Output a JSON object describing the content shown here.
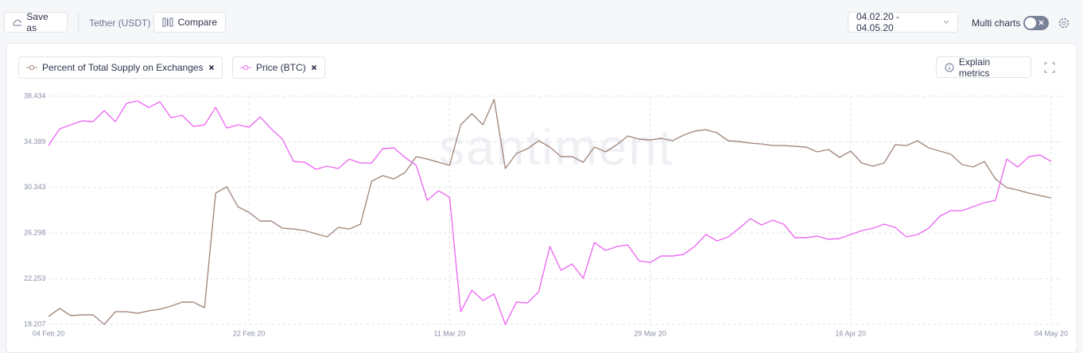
{
  "toolbar": {
    "save_as": "Save as",
    "asset": "Tether (USDT)",
    "compare": "Compare",
    "date_range": "04.02.20 - 04.05.20",
    "multi_charts": "Multi charts"
  },
  "explain": "Explain metrics",
  "watermark": "santiment",
  "chart_data": {
    "type": "line",
    "categories": [
      "04 Feb 20",
      null,
      null,
      null,
      null,
      null,
      null,
      null,
      null,
      null,
      null,
      null,
      null,
      null,
      null,
      null,
      null,
      null,
      "22 Feb 20",
      null,
      null,
      null,
      null,
      null,
      null,
      null,
      null,
      null,
      null,
      null,
      null,
      null,
      null,
      null,
      null,
      null,
      "11 Mar 20",
      null,
      null,
      null,
      null,
      null,
      null,
      null,
      null,
      null,
      null,
      null,
      null,
      null,
      null,
      null,
      null,
      null,
      "29 Mar 20",
      null,
      null,
      null,
      null,
      null,
      null,
      null,
      null,
      null,
      null,
      null,
      null,
      null,
      null,
      null,
      null,
      null,
      "16 Apr 20",
      null,
      null,
      null,
      null,
      null,
      null,
      null,
      null,
      null,
      null,
      null,
      null,
      null,
      null,
      null,
      null,
      null,
      "04 May 20"
    ],
    "series": [
      {
        "name": "Percent of Total Supply on Exchanges",
        "color": "#a38b80",
        "values": [
          18.91,
          19.62,
          18.98,
          19.05,
          19.05,
          18.21,
          19.33,
          19.33,
          19.19,
          19.41,
          19.55,
          19.83,
          20.18,
          20.18,
          19.69,
          29.84,
          30.4,
          28.64,
          28.14,
          27.37,
          27.37,
          26.73,
          26.66,
          26.52,
          26.24,
          25.96,
          26.8,
          26.66,
          27.09,
          30.89,
          31.39,
          31.1,
          31.67,
          33.08,
          32.86,
          32.58,
          32.3,
          35.9,
          36.88,
          35.9,
          38.15,
          32.02,
          33.36,
          33.78,
          34.49,
          33.92,
          33.08,
          33.08,
          32.58,
          33.92,
          33.5,
          34.13,
          34.91,
          34.63,
          34.56,
          34.7,
          34.49,
          34.98,
          35.33,
          35.47,
          35.19,
          34.49,
          34.42,
          34.27,
          34.2,
          34.06,
          34.06,
          33.99,
          33.92,
          33.5,
          33.71,
          33.01,
          33.57,
          32.51,
          32.23,
          32.51,
          34.13,
          34.06,
          34.49,
          33.85,
          33.57,
          33.29,
          32.37,
          32.16,
          32.65,
          31.1,
          30.33,
          30.12,
          29.84,
          29.62,
          29.41
        ]
      },
      {
        "name": "Price (BTC)",
        "color": "#ec6cf2",
        "values": [
          34.06,
          35.54,
          35.9,
          36.25,
          36.18,
          37.16,
          36.18,
          37.8,
          38.01,
          37.44,
          37.94,
          36.53,
          36.74,
          35.75,
          35.9,
          37.44,
          35.61,
          35.9,
          35.68,
          36.6,
          35.54,
          34.63,
          32.65,
          32.58,
          31.95,
          32.23,
          32.02,
          32.86,
          32.51,
          32.51,
          33.78,
          33.85,
          33.01,
          32.3,
          29.2,
          30.05,
          29.48,
          19.33,
          21.24,
          20.32,
          20.89,
          18.21,
          20.18,
          20.11,
          21.1,
          25.11,
          23.0,
          23.56,
          22.29,
          25.47,
          24.76,
          25.11,
          25.25,
          23.84,
          23.7,
          24.27,
          24.27,
          24.41,
          25.11,
          26.17,
          25.61,
          25.96,
          26.73,
          27.58,
          27.02,
          27.44,
          27.09,
          25.89,
          25.89,
          26.03,
          25.75,
          25.82,
          26.17,
          26.52,
          26.73,
          27.09,
          26.8,
          25.96,
          26.17,
          26.73,
          27.79,
          28.29,
          28.29,
          28.64,
          28.99,
          29.2,
          32.86,
          32.16,
          33.08,
          33.22,
          32.65
        ]
      }
    ],
    "ylim": [
      18.207,
      38.434
    ],
    "yticks": [
      18.207,
      22.253,
      26.298,
      30.343,
      34.389,
      38.434
    ],
    "grid": true
  }
}
